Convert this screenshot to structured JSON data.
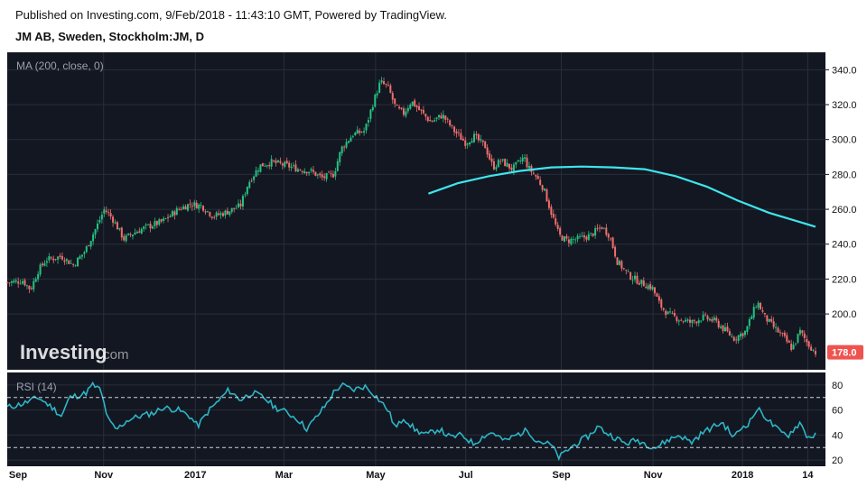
{
  "header": {
    "published": "Published on Investing.com, 9/Feb/2018 - 11:43:10 GMT, Powered by TradingView.",
    "symbol": "JM AB, Sweden, Stockholm:JM, D"
  },
  "watermark": {
    "brand": "Investing",
    "suffix": ".com"
  },
  "colors": {
    "background": "#131722",
    "up": "#26c281",
    "down": "#ef6f6c",
    "ma": "#3ee6ec",
    "rsi": "#2db5c4",
    "last_price_bg": "#ef5350"
  },
  "chart_data": [
    {
      "type": "candlestick",
      "indicator_label": "MA (200, close, 0)",
      "ylim": [
        168,
        350
      ],
      "yticks": [
        "340.0",
        "320.0",
        "300.0",
        "280.0",
        "260.0",
        "240.0",
        "220.0",
        "200.0"
      ],
      "last_price": "178.0",
      "x_range": [
        0,
        1
      ],
      "x_ticks": [
        {
          "label": "Sep",
          "pos": 0.0
        },
        {
          "label": "Nov",
          "pos": 0.124
        },
        {
          "label": "2017",
          "pos": 0.242
        },
        {
          "label": "Mar",
          "pos": 0.356
        },
        {
          "label": "May",
          "pos": 0.474
        },
        {
          "label": "Jul",
          "pos": 0.59
        },
        {
          "label": "Sep",
          "pos": 0.713
        },
        {
          "label": "Nov",
          "pos": 0.831
        },
        {
          "label": "2018",
          "pos": 0.946
        },
        {
          "label": "14",
          "pos": 1.03
        }
      ],
      "close_path": [
        [
          0.0,
          218
        ],
        [
          0.02,
          219
        ],
        [
          0.03,
          214
        ],
        [
          0.04,
          225
        ],
        [
          0.05,
          231
        ],
        [
          0.07,
          233
        ],
        [
          0.085,
          228
        ],
        [
          0.1,
          236
        ],
        [
          0.115,
          250
        ],
        [
          0.125,
          260
        ],
        [
          0.135,
          255
        ],
        [
          0.15,
          243
        ],
        [
          0.165,
          247
        ],
        [
          0.18,
          250
        ],
        [
          0.2,
          253
        ],
        [
          0.22,
          260
        ],
        [
          0.235,
          263
        ],
        [
          0.25,
          262
        ],
        [
          0.265,
          256
        ],
        [
          0.28,
          258
        ],
        [
          0.3,
          262
        ],
        [
          0.31,
          275
        ],
        [
          0.325,
          285
        ],
        [
          0.34,
          287
        ],
        [
          0.36,
          285
        ],
        [
          0.375,
          283
        ],
        [
          0.39,
          282
        ],
        [
          0.405,
          278
        ],
        [
          0.42,
          280
        ],
        [
          0.43,
          295
        ],
        [
          0.445,
          303
        ],
        [
          0.46,
          305
        ],
        [
          0.47,
          320
        ],
        [
          0.48,
          333
        ],
        [
          0.49,
          330
        ],
        [
          0.5,
          318
        ],
        [
          0.51,
          315
        ],
        [
          0.52,
          322
        ],
        [
          0.53,
          317
        ],
        [
          0.545,
          310
        ],
        [
          0.56,
          314
        ],
        [
          0.575,
          305
        ],
        [
          0.59,
          298
        ],
        [
          0.6,
          302
        ],
        [
          0.615,
          296
        ],
        [
          0.625,
          284
        ],
        [
          0.635,
          288
        ],
        [
          0.65,
          283
        ],
        [
          0.665,
          290
        ],
        [
          0.67,
          284
        ],
        [
          0.68,
          279
        ],
        [
          0.69,
          272
        ],
        [
          0.7,
          258
        ],
        [
          0.71,
          245
        ],
        [
          0.72,
          242
        ],
        [
          0.735,
          243
        ],
        [
          0.75,
          245
        ],
        [
          0.765,
          250
        ],
        [
          0.775,
          245
        ],
        [
          0.785,
          230
        ],
        [
          0.8,
          222
        ],
        [
          0.815,
          218
        ],
        [
          0.83,
          215
        ],
        [
          0.84,
          205
        ],
        [
          0.85,
          200
        ],
        [
          0.865,
          197
        ],
        [
          0.88,
          195
        ],
        [
          0.895,
          198
        ],
        [
          0.91,
          196
        ],
        [
          0.92,
          192
        ],
        [
          0.935,
          186
        ],
        [
          0.95,
          190
        ],
        [
          0.965,
          207
        ],
        [
          0.975,
          198
        ],
        [
          0.985,
          193
        ],
        [
          1.0,
          186
        ],
        [
          1.01,
          180
        ],
        [
          1.02,
          190
        ],
        [
          1.03,
          183
        ],
        [
          1.04,
          178
        ]
      ],
      "ma_200": [
        [
          0.542,
          269
        ],
        [
          0.58,
          275
        ],
        [
          0.62,
          279
        ],
        [
          0.66,
          282
        ],
        [
          0.7,
          284
        ],
        [
          0.74,
          284.5
        ],
        [
          0.78,
          284
        ],
        [
          0.82,
          283
        ],
        [
          0.86,
          279
        ],
        [
          0.9,
          273
        ],
        [
          0.94,
          265
        ],
        [
          0.98,
          258
        ],
        [
          1.04,
          250
        ]
      ]
    },
    {
      "type": "line",
      "indicator_label": "RSI (14)",
      "ylim": [
        15,
        90
      ],
      "yticks": [
        "80",
        "60",
        "40",
        "20"
      ],
      "bands": [
        70,
        30
      ],
      "values": [
        [
          0.0,
          62
        ],
        [
          0.02,
          65
        ],
        [
          0.04,
          70
        ],
        [
          0.06,
          61
        ],
        [
          0.07,
          55
        ],
        [
          0.08,
          70
        ],
        [
          0.1,
          73
        ],
        [
          0.11,
          80
        ],
        [
          0.12,
          76
        ],
        [
          0.13,
          52
        ],
        [
          0.14,
          44
        ],
        [
          0.155,
          52
        ],
        [
          0.17,
          55
        ],
        [
          0.19,
          58
        ],
        [
          0.2,
          62
        ],
        [
          0.22,
          60
        ],
        [
          0.235,
          55
        ],
        [
          0.245,
          47
        ],
        [
          0.26,
          60
        ],
        [
          0.27,
          66
        ],
        [
          0.285,
          76
        ],
        [
          0.3,
          68
        ],
        [
          0.315,
          74
        ],
        [
          0.33,
          70
        ],
        [
          0.345,
          62
        ],
        [
          0.36,
          58
        ],
        [
          0.375,
          52
        ],
        [
          0.385,
          45
        ],
        [
          0.395,
          52
        ],
        [
          0.41,
          64
        ],
        [
          0.42,
          74
        ],
        [
          0.43,
          80
        ],
        [
          0.445,
          76
        ],
        [
          0.46,
          79
        ],
        [
          0.47,
          74
        ],
        [
          0.48,
          67
        ],
        [
          0.49,
          60
        ],
        [
          0.5,
          45
        ],
        [
          0.51,
          54
        ],
        [
          0.525,
          44
        ],
        [
          0.54,
          40
        ],
        [
          0.555,
          45
        ],
        [
          0.57,
          38
        ],
        [
          0.585,
          40
        ],
        [
          0.6,
          33
        ],
        [
          0.615,
          40
        ],
        [
          0.625,
          42
        ],
        [
          0.64,
          35
        ],
        [
          0.655,
          40
        ],
        [
          0.67,
          44
        ],
        [
          0.68,
          36
        ],
        [
          0.7,
          32
        ],
        [
          0.71,
          22
        ],
        [
          0.725,
          30
        ],
        [
          0.74,
          36
        ],
        [
          0.75,
          40
        ],
        [
          0.76,
          47
        ],
        [
          0.77,
          42
        ],
        [
          0.785,
          37
        ],
        [
          0.795,
          33
        ],
        [
          0.81,
          36
        ],
        [
          0.825,
          32
        ],
        [
          0.835,
          30
        ],
        [
          0.85,
          36
        ],
        [
          0.865,
          40
        ],
        [
          0.88,
          34
        ],
        [
          0.895,
          42
        ],
        [
          0.91,
          47
        ],
        [
          0.92,
          50
        ],
        [
          0.935,
          38
        ],
        [
          0.945,
          46
        ],
        [
          0.955,
          50
        ],
        [
          0.965,
          61
        ],
        [
          0.975,
          55
        ],
        [
          0.985,
          48
        ],
        [
          0.995,
          42
        ],
        [
          1.005,
          40
        ],
        [
          1.02,
          50
        ],
        [
          1.03,
          38
        ],
        [
          1.04,
          40
        ]
      ]
    }
  ]
}
